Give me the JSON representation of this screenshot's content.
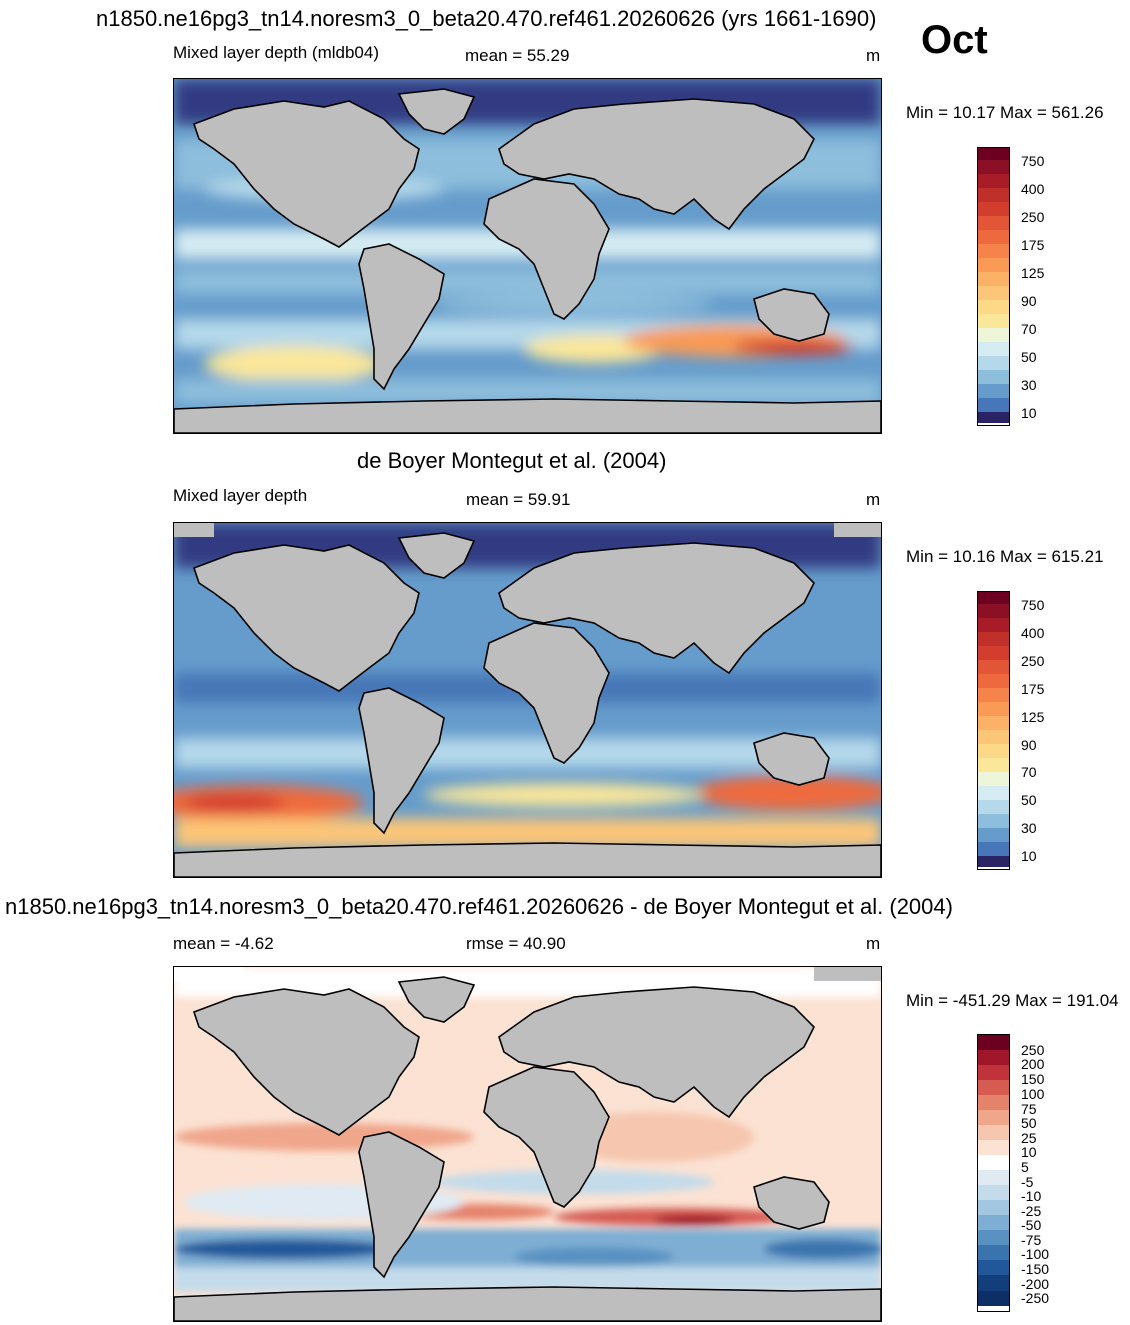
{
  "main_title": "n1850.ne16pg3_tn14.noresm3_0_beta20.470.ref461.20260626 (yrs 1661-1690)",
  "month": "Oct",
  "panels": [
    {
      "left_label": "Mixed layer depth (mldb04)",
      "center_label": "mean =  55.29",
      "units": "m",
      "minmax": "Min =  10.17 Max = 561.26",
      "colorbar_labels": [
        "750",
        "400",
        "250",
        "175",
        "125",
        "90",
        "70",
        "50",
        "30",
        "10"
      ]
    },
    {
      "title": "de Boyer Montegut et al. (2004)",
      "left_label": "Mixed layer depth",
      "center_label": "mean =  59.91",
      "units": "m",
      "minmax": "Min =  10.16 Max = 615.21",
      "colorbar_labels": [
        "750",
        "400",
        "250",
        "175",
        "125",
        "90",
        "70",
        "50",
        "30",
        "10"
      ]
    },
    {
      "title": "n1850.ne16pg3_tn14.noresm3_0_beta20.470.ref461.20260626 - de Boyer Montegut et al. (2004)",
      "left_label": "mean =  -4.62",
      "center_label": "rmse =  40.90",
      "units": "m",
      "minmax": "Min = -451.29 Max = 191.04",
      "colorbar_labels": [
        "250",
        "200",
        "150",
        "100",
        "75",
        "50",
        "25",
        "10",
        "5",
        "-5",
        "-10",
        "-25",
        "-50",
        "-75",
        "-100",
        "-150",
        "-200",
        "-250"
      ]
    }
  ],
  "colors": {
    "land": "#bebebe",
    "depth_scale": [
      "#6b0020",
      "#a81c28",
      "#d33d2d",
      "#ee6a3e",
      "#f99a55",
      "#fcc678",
      "#fbe79a",
      "#eef6da",
      "#d5ecf3",
      "#b5d8ea",
      "#8dbedc",
      "#659ccb",
      "#4777b8",
      "#333b82",
      "#2a2466"
    ],
    "diff_scale": [
      "#6b0020",
      "#a0172a",
      "#c0333b",
      "#d65c52",
      "#e5826a",
      "#f0a68b",
      "#f6c6ae",
      "#fbe2d3",
      "#ffffff",
      "#dfeaf3",
      "#c3dbeb",
      "#a2c7e1",
      "#7eaed3",
      "#5992c2",
      "#3a74ae",
      "#22589a",
      "#123e7c"
    ]
  }
}
